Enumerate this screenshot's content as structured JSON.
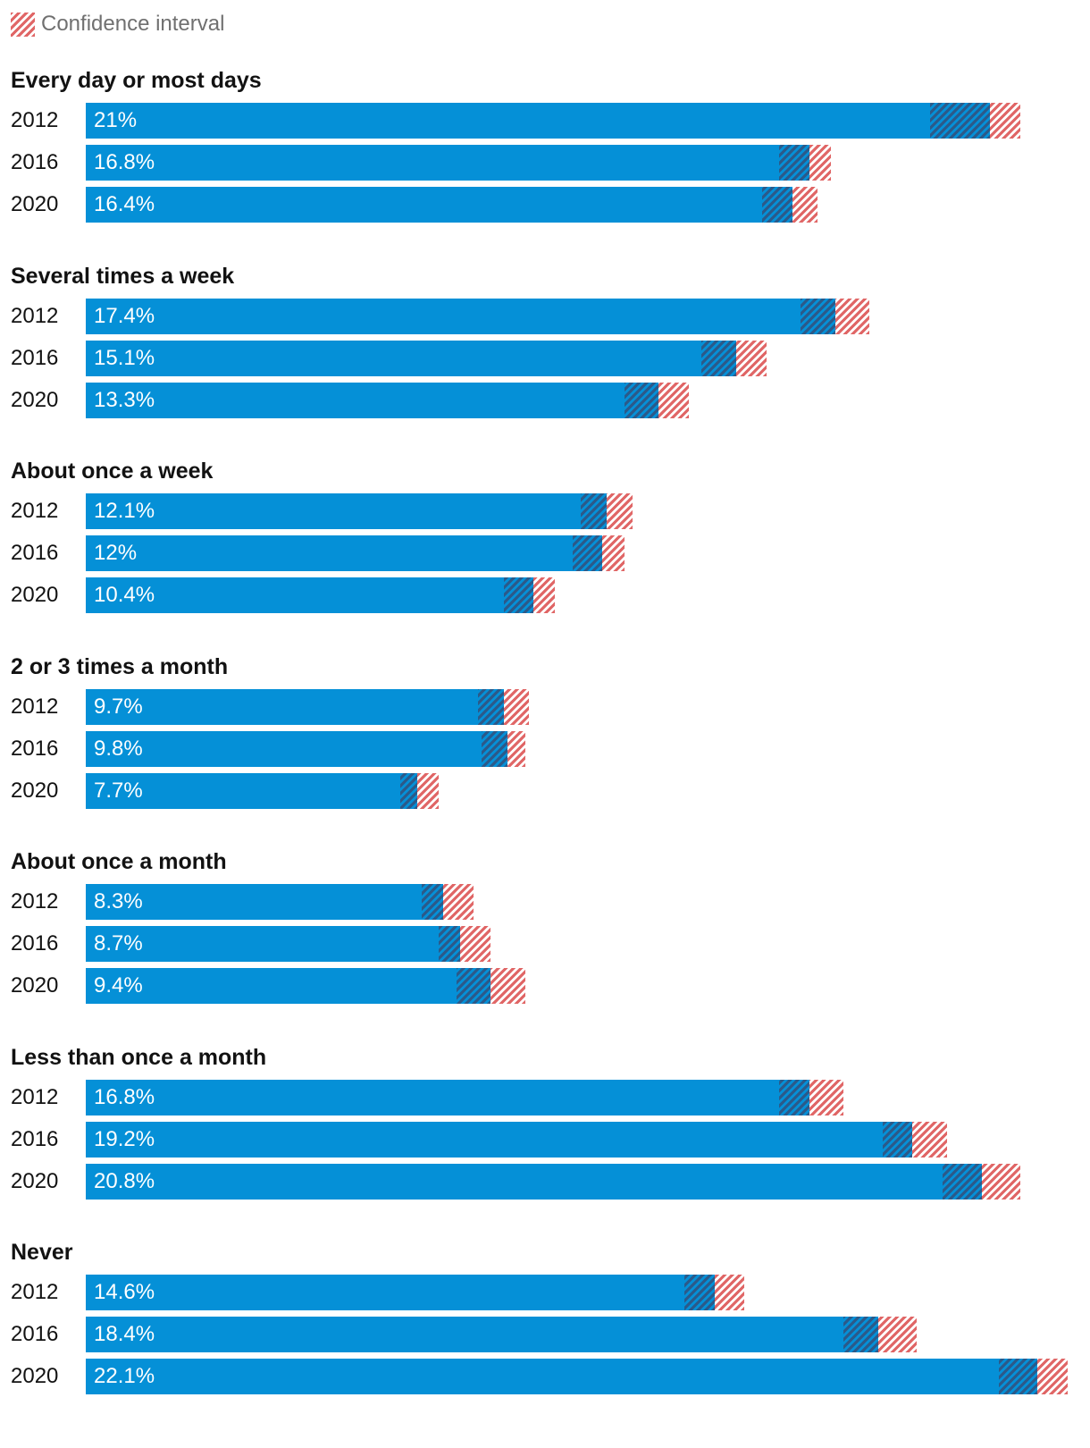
{
  "legend": {
    "label": "Confidence interval"
  },
  "chart_data": {
    "type": "bar",
    "orientation": "horizontal",
    "title": "",
    "xlabel": "",
    "ylabel": "",
    "legend": {
      "entries": [
        "Confidence interval"
      ],
      "placement": "top-left"
    },
    "xlim": [
      0,
      22.8
    ],
    "grid": false,
    "colors": {
      "bar": "#0590d7",
      "ci_over_bar": "#2b5a8a",
      "ci_stripe": "#e06666",
      "text": "#121212",
      "legend_text": "#707070"
    },
    "series_years": [
      "2012",
      "2016",
      "2020"
    ],
    "groups": [
      {
        "name": "Every day or most days",
        "items": [
          {
            "year": "2012",
            "value": 21,
            "label": "21%",
            "ci": [
              19.6,
              21.7
            ]
          },
          {
            "year": "2016",
            "value": 16.8,
            "label": "16.8%",
            "ci": [
              16.1,
              17.3
            ]
          },
          {
            "year": "2020",
            "value": 16.4,
            "label": "16.4%",
            "ci": [
              15.7,
              17.0
            ]
          }
        ]
      },
      {
        "name": "Several times a week",
        "items": [
          {
            "year": "2012",
            "value": 17.4,
            "label": "17.4%",
            "ci": [
              16.6,
              18.2
            ]
          },
          {
            "year": "2016",
            "value": 15.1,
            "label": "15.1%",
            "ci": [
              14.3,
              15.8
            ]
          },
          {
            "year": "2020",
            "value": 13.3,
            "label": "13.3%",
            "ci": [
              12.5,
              14.0
            ]
          }
        ]
      },
      {
        "name": "About once a week",
        "items": [
          {
            "year": "2012",
            "value": 12.1,
            "label": "12.1%",
            "ci": [
              11.5,
              12.7
            ]
          },
          {
            "year": "2016",
            "value": 12,
            "label": "12%",
            "ci": [
              11.3,
              12.5
            ]
          },
          {
            "year": "2020",
            "value": 10.4,
            "label": "10.4%",
            "ci": [
              9.7,
              10.9
            ]
          }
        ]
      },
      {
        "name": "2 or 3 times a month",
        "items": [
          {
            "year": "2012",
            "value": 9.7,
            "label": "9.7%",
            "ci": [
              9.1,
              10.3
            ]
          },
          {
            "year": "2016",
            "value": 9.8,
            "label": "9.8%",
            "ci": [
              9.2,
              10.2
            ]
          },
          {
            "year": "2020",
            "value": 7.7,
            "label": "7.7%",
            "ci": [
              7.3,
              8.2
            ]
          }
        ]
      },
      {
        "name": "About once a month",
        "items": [
          {
            "year": "2012",
            "value": 8.3,
            "label": "8.3%",
            "ci": [
              7.8,
              9.0
            ]
          },
          {
            "year": "2016",
            "value": 8.7,
            "label": "8.7%",
            "ci": [
              8.2,
              9.4
            ]
          },
          {
            "year": "2020",
            "value": 9.4,
            "label": "9.4%",
            "ci": [
              8.6,
              10.2
            ]
          }
        ]
      },
      {
        "name": "Less than once a month",
        "items": [
          {
            "year": "2012",
            "value": 16.8,
            "label": "16.8%",
            "ci": [
              16.1,
              17.6
            ]
          },
          {
            "year": "2016",
            "value": 19.2,
            "label": "19.2%",
            "ci": [
              18.5,
              20.0
            ]
          },
          {
            "year": "2020",
            "value": 20.8,
            "label": "20.8%",
            "ci": [
              19.9,
              21.7
            ]
          }
        ]
      },
      {
        "name": "Never",
        "items": [
          {
            "year": "2012",
            "value": 14.6,
            "label": "14.6%",
            "ci": [
              13.9,
              15.3
            ]
          },
          {
            "year": "2016",
            "value": 18.4,
            "label": "18.4%",
            "ci": [
              17.6,
              19.3
            ]
          },
          {
            "year": "2020",
            "value": 22.1,
            "label": "22.1%",
            "ci": [
              21.2,
              22.8
            ]
          }
        ]
      }
    ]
  }
}
